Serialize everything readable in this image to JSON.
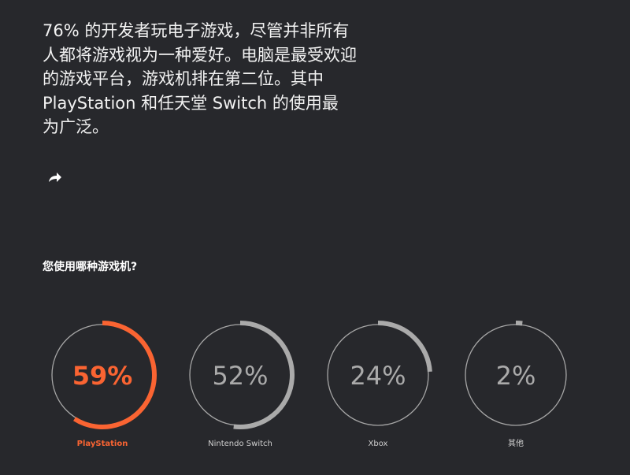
{
  "intro": {
    "lines": [
      "76% 的开发者玩电子游戏，尽管并非所有",
      "人都将游戏视为一种爱好。电脑是最受欢迎",
      "的游戏平台，游戏机排在第二位。其中",
      "PlayStation 和任天堂 Switch 的使用最",
      "为广泛。"
    ]
  },
  "share_icon": "share-arrow-icon",
  "chart_data": {
    "type": "donut",
    "title": "您使用哪种游戏机?",
    "categories": [
      "PlayStation",
      "Nintendo Switch",
      "Xbox",
      "其他"
    ],
    "values": [
      59,
      52,
      24,
      2
    ],
    "labels": [
      "59%",
      "52%",
      "24%",
      "2%"
    ],
    "highlight_index": 0,
    "colors": {
      "highlight": "#fa6432",
      "normal": "#aaaaaa",
      "track": "#a6a6a6",
      "background": "#27282c"
    }
  }
}
